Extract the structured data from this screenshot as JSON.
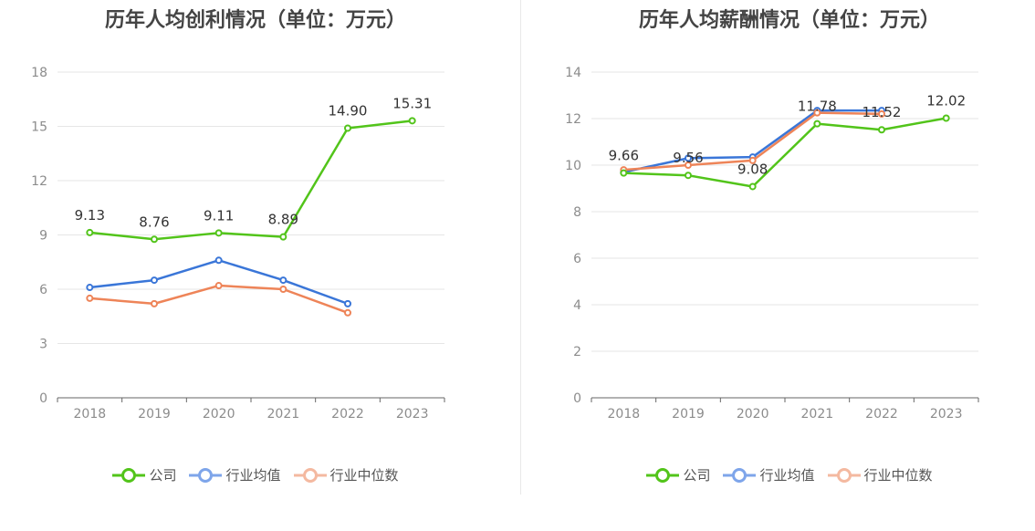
{
  "chart_data": [
    {
      "type": "line",
      "title": "历年人均创利情况（单位：万元）",
      "categories": [
        "2018",
        "2019",
        "2020",
        "2021",
        "2022",
        "2023"
      ],
      "ylim": [
        0,
        18
      ],
      "yticks": [
        0,
        3,
        6,
        9,
        12,
        15,
        18
      ],
      "ytick_labels": [
        "0",
        "3",
        "6",
        "9",
        "12",
        "15",
        "18"
      ],
      "grid": true,
      "legend_position": "bottom",
      "series": [
        {
          "name": "公司",
          "color": "#52c41a",
          "values": [
            9.13,
            8.76,
            9.11,
            8.89,
            14.9,
            15.31
          ],
          "labels": [
            "9.13",
            "8.76",
            "9.11",
            "8.89",
            "14.90",
            "15.31"
          ]
        },
        {
          "name": "行业均值",
          "color": "#3a76d8",
          "values": [
            6.1,
            6.5,
            7.6,
            6.5,
            5.2,
            null
          ]
        },
        {
          "name": "行业中位数",
          "color": "#ee8458",
          "values": [
            5.5,
            5.2,
            6.2,
            6.0,
            4.7,
            null
          ]
        }
      ]
    },
    {
      "type": "line",
      "title": "历年人均薪酬情况（单位：万元）",
      "categories": [
        "2018",
        "2019",
        "2020",
        "2021",
        "2022",
        "2023"
      ],
      "ylim": [
        0,
        14
      ],
      "yticks": [
        0,
        2,
        4,
        6,
        8,
        10,
        12,
        14
      ],
      "ytick_labels": [
        "0",
        "2",
        "4",
        "6",
        "8",
        "10",
        "12",
        "14"
      ],
      "grid": true,
      "legend_position": "bottom",
      "series": [
        {
          "name": "公司",
          "color": "#52c41a",
          "values": [
            9.66,
            9.56,
            9.08,
            11.78,
            11.52,
            12.02
          ],
          "labels": [
            "9.66",
            "9.56",
            "9.08",
            "11.78",
            "11.52",
            "12.02"
          ]
        },
        {
          "name": "行业均值",
          "color": "#3a76d8",
          "values": [
            9.7,
            10.3,
            10.35,
            12.35,
            12.35,
            null
          ]
        },
        {
          "name": "行业中位数",
          "color": "#ee8458",
          "values": [
            9.8,
            10.0,
            10.2,
            12.25,
            12.2,
            null
          ]
        }
      ]
    }
  ],
  "legend_colors": [
    "#52c41a",
    "#7ea5ea",
    "#f4b9a0"
  ]
}
